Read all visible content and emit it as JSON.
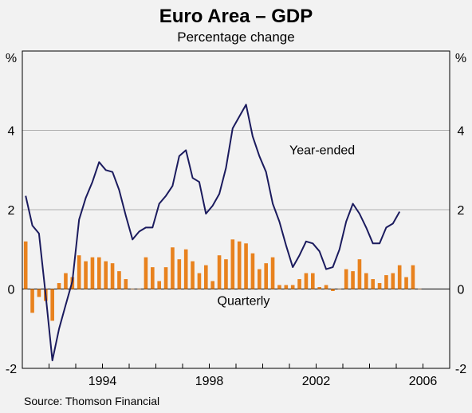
{
  "chart_data": {
    "type": "bar+line",
    "title": "Euro Area – GDP",
    "subtitle": "Percentage change",
    "ylabel_left": "%",
    "ylabel_right": "%",
    "ylim": [
      -2,
      6
    ],
    "yticks": [
      -2,
      0,
      2,
      4
    ],
    "ytick_labels": [
      "-2",
      "0",
      "2",
      "4"
    ],
    "xlim": [
      1991,
      2007
    ],
    "xticks": [
      1994,
      1998,
      2002,
      2006
    ],
    "xtick_labels": [
      "1994",
      "1998",
      "2002",
      "2006"
    ],
    "grid": true,
    "colors": {
      "line": "#1b1b5e",
      "bar": "#e8821e",
      "grid": "#b0b0b0",
      "background": "#f2f2f2"
    },
    "annotations": [
      {
        "text": "Year-ended",
        "series": "Year-ended",
        "color": "#1b1b5e",
        "x": 2001.0,
        "y": 3.4
      },
      {
        "text": "Quarterly",
        "series": "Quarterly",
        "color": "#e8821e",
        "x": 1998.3,
        "y": -0.4
      }
    ],
    "series": [
      {
        "name": "Quarterly",
        "kind": "bar",
        "quarters": [
          "1991Q1",
          "1991Q2",
          "1991Q3",
          "1991Q4",
          "1992Q1",
          "1992Q2",
          "1992Q3",
          "1992Q4",
          "1993Q1",
          "1993Q2",
          "1993Q3",
          "1993Q4",
          "1994Q1",
          "1994Q2",
          "1994Q3",
          "1994Q4",
          "1995Q1",
          "1995Q2",
          "1995Q3",
          "1995Q4",
          "1996Q1",
          "1996Q2",
          "1996Q3",
          "1996Q4",
          "1997Q1",
          "1997Q2",
          "1997Q3",
          "1997Q4",
          "1998Q1",
          "1998Q2",
          "1998Q3",
          "1998Q4",
          "1999Q1",
          "1999Q2",
          "1999Q3",
          "1999Q4",
          "2000Q1",
          "2000Q2",
          "2000Q3",
          "2000Q4",
          "2001Q1",
          "2001Q2",
          "2001Q3",
          "2001Q4",
          "2002Q1",
          "2002Q2",
          "2002Q3",
          "2002Q4",
          "2003Q1",
          "2003Q2",
          "2003Q3",
          "2003Q4",
          "2004Q1",
          "2004Q2",
          "2004Q3",
          "2004Q4",
          "2005Q1",
          "2005Q2",
          "2005Q3",
          "2005Q4"
        ],
        "values": [
          1.2,
          -0.6,
          -0.2,
          -0.3,
          -0.8,
          0.15,
          0.4,
          0.3,
          0.85,
          0.7,
          0.8,
          0.8,
          0.7,
          0.65,
          0.45,
          0.25,
          0.0,
          0.0,
          0.8,
          0.55,
          0.2,
          0.55,
          1.05,
          0.75,
          1.0,
          0.7,
          0.4,
          0.6,
          0.2,
          0.85,
          0.75,
          1.25,
          1.2,
          1.15,
          0.9,
          0.5,
          0.65,
          0.8,
          0.1,
          0.1,
          0.1,
          0.25,
          0.4,
          0.4,
          0.05,
          0.1,
          -0.05,
          0.0,
          0.5,
          0.45,
          0.75,
          0.4,
          0.25,
          0.15,
          0.35,
          0.4,
          0.6,
          0.3,
          0.6,
          0.0
        ]
      },
      {
        "name": "Year-ended",
        "kind": "line",
        "quarters": [
          "1991Q1",
          "1991Q2",
          "1991Q3",
          "1991Q4",
          "1992Q1",
          "1992Q2",
          "1992Q3",
          "1992Q4",
          "1993Q1",
          "1993Q2",
          "1993Q3",
          "1993Q4",
          "1994Q1",
          "1994Q2",
          "1994Q3",
          "1994Q4",
          "1995Q1",
          "1995Q2",
          "1995Q3",
          "1995Q4",
          "1996Q1",
          "1996Q2",
          "1996Q3",
          "1996Q4",
          "1997Q1",
          "1997Q2",
          "1997Q3",
          "1997Q4",
          "1998Q1",
          "1998Q2",
          "1998Q3",
          "1998Q4",
          "1999Q1",
          "1999Q2",
          "1999Q3",
          "1999Q4",
          "2000Q1",
          "2000Q2",
          "2000Q3",
          "2000Q4",
          "2001Q1",
          "2001Q2",
          "2001Q3",
          "2001Q4",
          "2002Q1",
          "2002Q2",
          "2002Q3",
          "2002Q4",
          "2003Q1",
          "2003Q2",
          "2003Q3",
          "2003Q4",
          "2004Q1",
          "2004Q2",
          "2004Q3",
          "2004Q4",
          "2005Q1",
          "2005Q2",
          "2005Q3",
          "2005Q4"
        ],
        "values": [
          2.35,
          1.6,
          1.4,
          -0.15,
          -1.8,
          -1.0,
          -0.4,
          0.2,
          1.75,
          2.3,
          2.7,
          3.2,
          3.0,
          2.95,
          2.5,
          1.85,
          1.25,
          1.45,
          1.55,
          1.55,
          2.15,
          2.35,
          2.6,
          3.35,
          3.5,
          2.8,
          2.7,
          1.9,
          2.1,
          2.4,
          3.05,
          4.05,
          4.35,
          4.65,
          3.85,
          3.35,
          2.95,
          2.15,
          1.7,
          1.1,
          0.55,
          0.85,
          1.2,
          1.15,
          0.95,
          0.5,
          0.55,
          1.0,
          1.7,
          2.15,
          1.9,
          1.55,
          1.15,
          1.15,
          1.55,
          1.65,
          1.95,
          null,
          null,
          null
        ]
      }
    ],
    "source": "Source: Thomson Financial"
  }
}
